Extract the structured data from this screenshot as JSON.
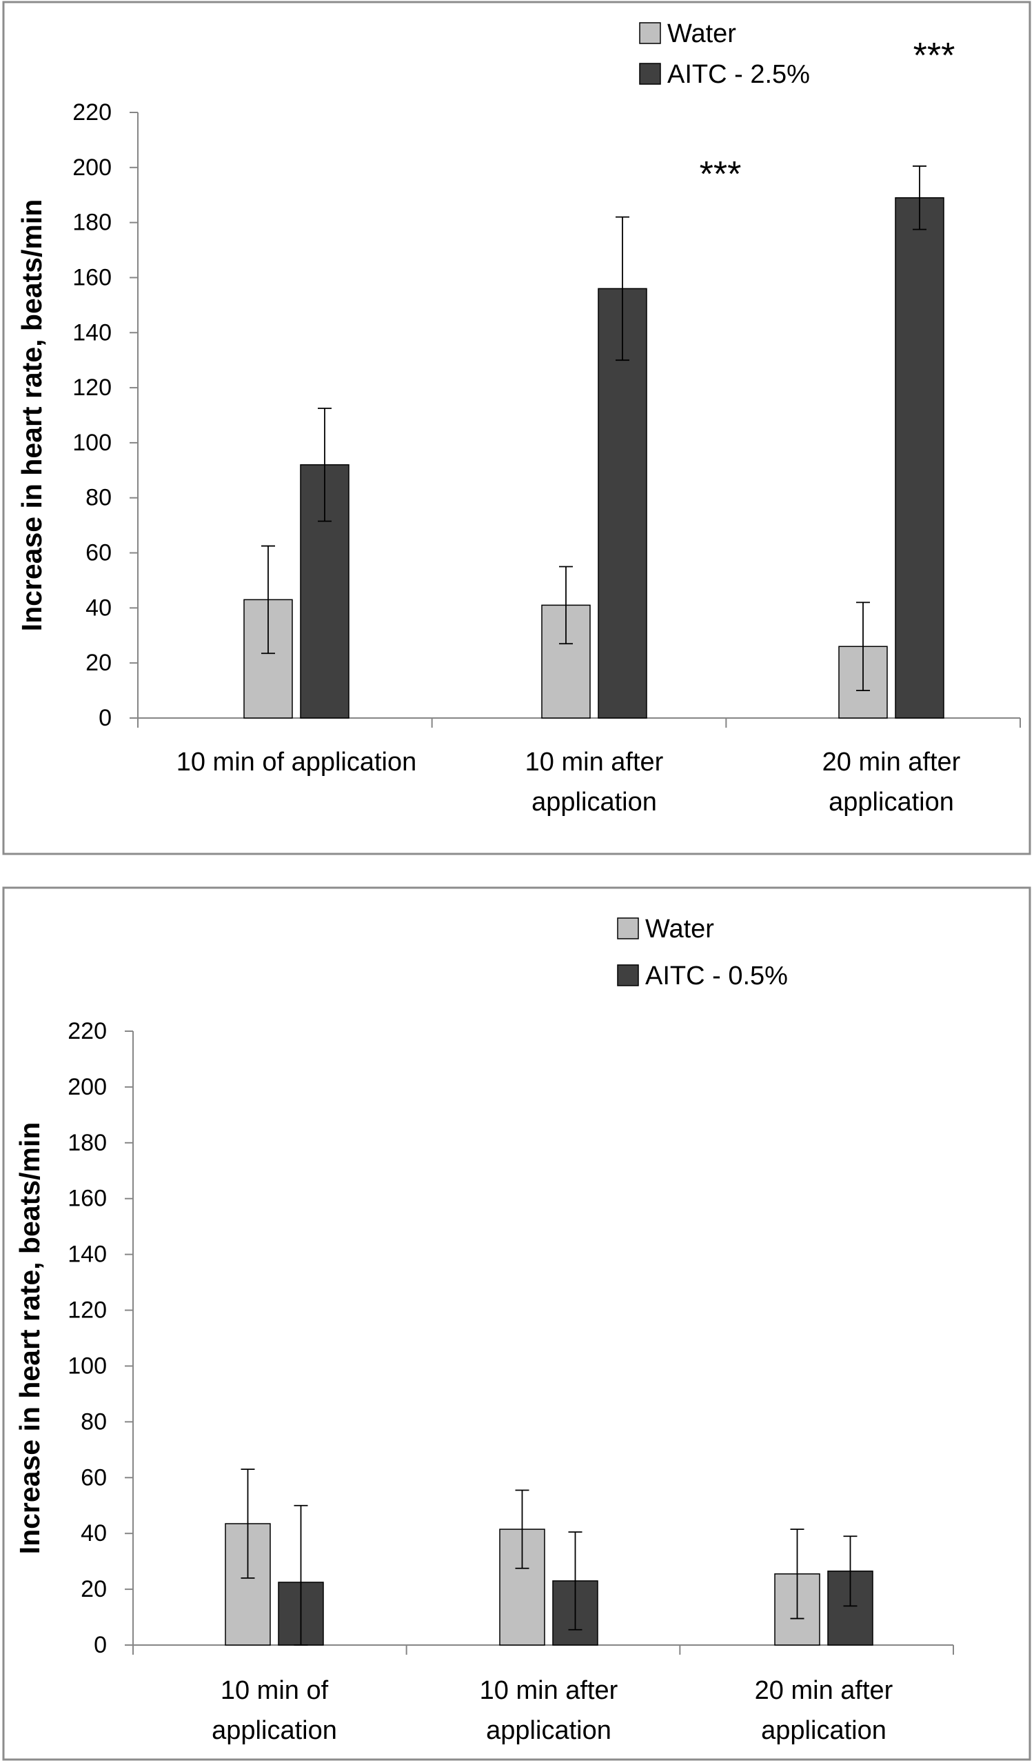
{
  "colors": {
    "water": "#c0c0c0",
    "aitc": "#404040",
    "panel_border": "#8c8c8c",
    "axis": "#868686",
    "bar_stroke": "#000000"
  },
  "chart_data": [
    {
      "type": "bar",
      "title": "",
      "xlabel": "",
      "ylabel": "Increase in heart rate, beats/min",
      "ylim": [
        0,
        220
      ],
      "yticks": [
        "0",
        "20",
        "40",
        "60",
        "80",
        "100",
        "120",
        "140",
        "160",
        "180",
        "200",
        "220"
      ],
      "categories": [
        [
          "10 min of application"
        ],
        [
          "10 min after",
          "application"
        ],
        [
          "20 min after",
          "application"
        ]
      ],
      "series": [
        {
          "name": "Water",
          "values": [
            43,
            41,
            26
          ],
          "error": [
            19.5,
            14,
            16
          ]
        },
        {
          "name": "AITC - 2.5%",
          "values": [
            92,
            156,
            189
          ],
          "error": [
            20.5,
            26,
            11.5
          ]
        }
      ],
      "legend": [
        "Water",
        "AITC - 2.5%"
      ],
      "legend_position": "top-right",
      "annotations": [
        {
          "category": 1,
          "text": "***"
        },
        {
          "category": 2,
          "text": "***"
        }
      ]
    },
    {
      "type": "bar",
      "title": "",
      "xlabel": "",
      "ylabel": "Increase in heart rate, beats/min",
      "ylim": [
        0,
        220
      ],
      "yticks": [
        "0",
        "20",
        "40",
        "60",
        "80",
        "100",
        "120",
        "140",
        "160",
        "180",
        "200",
        "220"
      ],
      "categories": [
        [
          "10 min of",
          "application"
        ],
        [
          "10 min after",
          "application"
        ],
        [
          "20 min after",
          "application"
        ]
      ],
      "series": [
        {
          "name": "Water",
          "values": [
            43.5,
            41.5,
            25.5
          ],
          "error": [
            19.5,
            14,
            16
          ]
        },
        {
          "name": "AITC - 0.5%",
          "values": [
            22.5,
            23,
            26.5
          ],
          "error": [
            27.5,
            17.5,
            12.5
          ]
        }
      ],
      "legend": [
        "Water",
        "AITC - 0.5%"
      ],
      "legend_position": "top-right",
      "annotations": []
    }
  ]
}
